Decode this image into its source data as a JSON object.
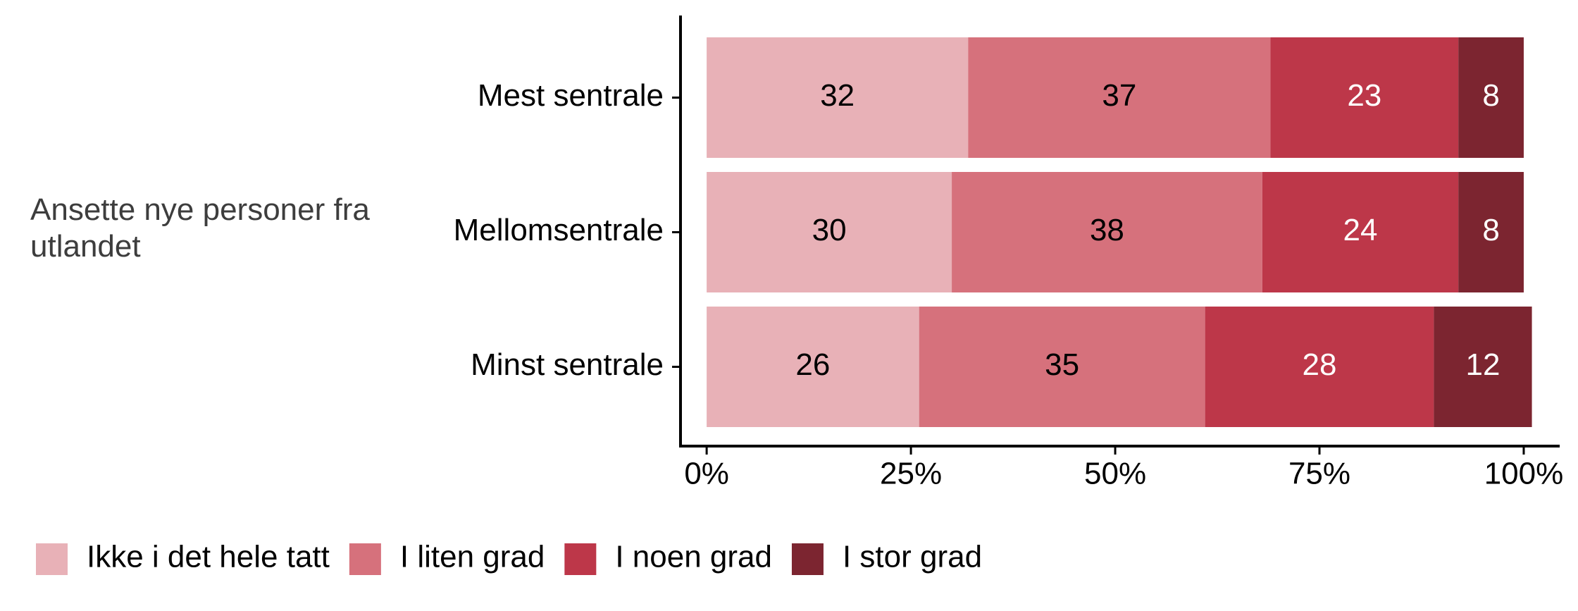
{
  "chart_data": {
    "type": "stacked-bar-horizontal",
    "group_label": "Ansette nye personer fra utlandet",
    "categories": [
      "Mest sentrale",
      "Mellomsentrale",
      "Minst sentrale"
    ],
    "series": [
      {
        "name": "Ikke i det hele tatt",
        "color": "#e8b1b7",
        "label_color": "#000000",
        "values": [
          32,
          30,
          26
        ]
      },
      {
        "name": "I liten grad",
        "color": "#d6717c",
        "label_color": "#000000",
        "values": [
          37,
          38,
          35
        ]
      },
      {
        "name": "I noen grad",
        "color": "#bd3749",
        "label_color": "#ffffff",
        "values": [
          23,
          24,
          28
        ]
      },
      {
        "name": "I stor grad",
        "color": "#7c2530",
        "label_color": "#ffffff",
        "values": [
          8,
          8,
          12
        ]
      }
    ],
    "xlim": [
      -3.2,
      104.4
    ],
    "xticks": [
      {
        "value": 0,
        "label": "0%"
      },
      {
        "value": 25,
        "label": "25%"
      },
      {
        "value": 50,
        "label": "50%"
      },
      {
        "value": 75,
        "label": "75%"
      },
      {
        "value": 100,
        "label": "100%"
      }
    ],
    "legend": "bottom"
  }
}
